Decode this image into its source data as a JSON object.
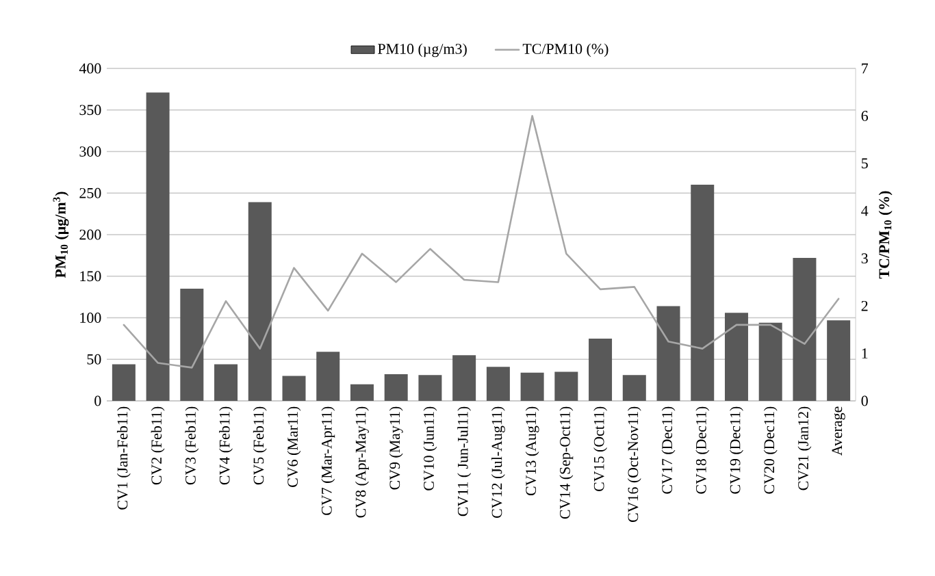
{
  "chart_data": {
    "type": "bar",
    "ylabel": "PM$_{10}$ (µg/m$^{3}$)",
    "y2label": "TC/PM$_{10}$ (%)",
    "categories": [
      "CV1 (Jan-Feb11)",
      "CV2 (Feb11)",
      "CV3 (Feb11)",
      "CV4 (Feb11)",
      "CV5 (Feb11)",
      "CV6 (Mar11)",
      "CV7 (Mar-Apr11)",
      "CV8 (Apr-May11)",
      "CV9 (May11)",
      "CV10 (Jun11)",
      "CV11 ( Jun-Jul11)",
      "CV12 (Jul-Aug11)",
      "CV13 (Aug11)",
      "CV14 (Sep-Oct11)",
      "CV15 (Oct11)",
      "CV16 (Oct-Nov11)",
      "CV17 (Dec11)",
      "CV18 (Dec11)",
      "CV19 (Dec11)",
      "CV20 (Dec11)",
      "CV21 (Jan12)",
      "Average"
    ],
    "series": [
      {
        "name": "PM10 (µg/m3)",
        "color": "#595959",
        "values": [
          44,
          371,
          135,
          44,
          239,
          30,
          59,
          20,
          32,
          31,
          55,
          41,
          34,
          35,
          75,
          31,
          114,
          260,
          106,
          94,
          172,
          97
        ]
      },
      {
        "name": "TC/PM10 (%)",
        "type": "line",
        "axis": "y2",
        "color": "#a6a6a6",
        "values": [
          1.6,
          0.8,
          0.7,
          2.1,
          1.1,
          2.8,
          1.9,
          3.1,
          2.5,
          3.2,
          2.55,
          2.5,
          6.0,
          3.1,
          2.35,
          2.4,
          1.25,
          1.1,
          1.6,
          1.6,
          1.2,
          2.15
        ]
      }
    ],
    "ylim": [
      0,
      400
    ],
    "yticks": [
      0,
      50,
      100,
      150,
      200,
      250,
      300,
      350,
      400
    ],
    "y2lim": [
      0,
      7
    ],
    "y2ticks": [
      0,
      1,
      2,
      3,
      4,
      5,
      6,
      7
    ],
    "grid": "y",
    "legend": "top",
    "marker": "none"
  }
}
